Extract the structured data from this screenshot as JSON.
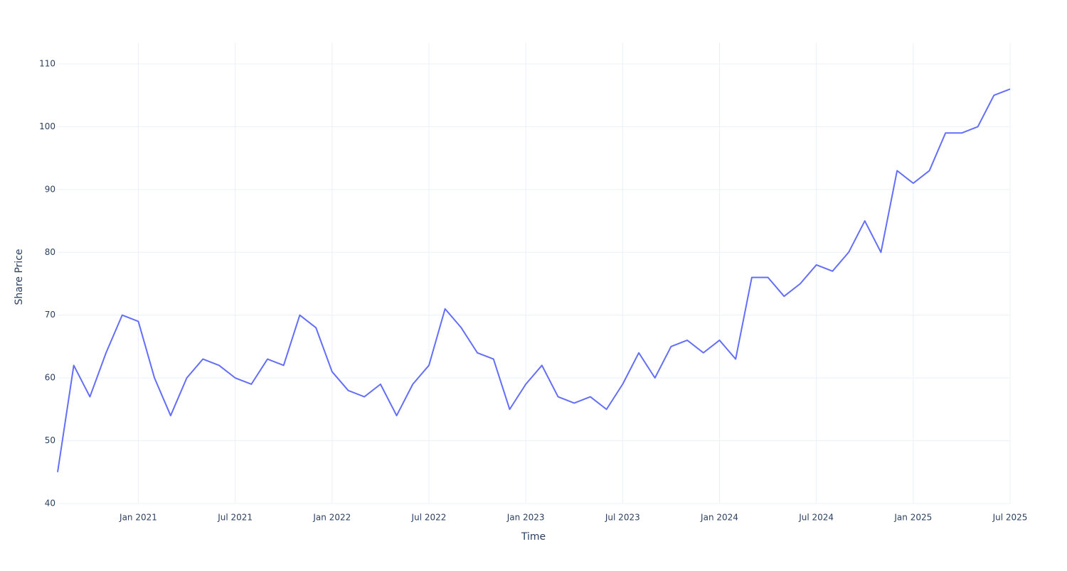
{
  "chart_data": {
    "type": "line",
    "xlabel": "Time",
    "ylabel": "Share Price",
    "x": [
      "2020-08",
      "2020-09",
      "2020-10",
      "2020-11",
      "2020-12",
      "2021-01",
      "2021-02",
      "2021-03",
      "2021-04",
      "2021-05",
      "2021-06",
      "2021-07",
      "2021-08",
      "2021-09",
      "2021-10",
      "2021-11",
      "2021-12",
      "2022-01",
      "2022-02",
      "2022-03",
      "2022-04",
      "2022-05",
      "2022-06",
      "2022-07",
      "2022-08",
      "2022-09",
      "2022-10",
      "2022-11",
      "2022-12",
      "2023-01",
      "2023-02",
      "2023-03",
      "2023-04",
      "2023-05",
      "2023-06",
      "2023-07",
      "2023-08",
      "2023-09",
      "2023-10",
      "2023-11",
      "2023-12",
      "2024-01",
      "2024-02",
      "2024-03",
      "2024-04",
      "2024-05",
      "2024-06",
      "2024-07",
      "2024-08",
      "2024-09",
      "2024-10",
      "2024-11",
      "2024-12",
      "2025-01",
      "2025-02",
      "2025-03",
      "2025-04",
      "2025-05",
      "2025-06",
      "2025-07"
    ],
    "series": [
      {
        "color": "#636efa",
        "values": [
          45,
          62,
          57,
          64,
          70,
          69,
          60,
          54,
          60,
          63,
          62,
          60,
          59,
          63,
          62,
          70,
          68,
          61,
          58,
          57,
          59,
          54,
          59,
          62,
          71,
          68,
          64,
          63,
          55,
          59,
          62,
          57,
          56,
          57,
          55,
          59,
          64,
          60,
          65,
          66,
          64,
          66,
          63,
          76,
          76,
          73,
          75,
          78,
          77,
          80,
          85,
          80,
          93,
          91,
          93,
          99,
          99,
          100,
          105,
          106
        ]
      }
    ],
    "xlim": [
      "2020-08",
      "2025-07"
    ],
    "xticks": [
      {
        "value": "2021-01",
        "label": "Jan 2021"
      },
      {
        "value": "2021-07",
        "label": "Jul 2021"
      },
      {
        "value": "2022-01",
        "label": "Jan 2022"
      },
      {
        "value": "2022-07",
        "label": "Jul 2022"
      },
      {
        "value": "2023-01",
        "label": "Jan 2023"
      },
      {
        "value": "2023-07",
        "label": "Jul 2023"
      },
      {
        "value": "2024-01",
        "label": "Jan 2024"
      },
      {
        "value": "2024-07",
        "label": "Jul 2024"
      },
      {
        "value": "2025-01",
        "label": "Jan 2025"
      },
      {
        "value": "2025-07",
        "label": "Jul 2025"
      }
    ],
    "ylim": [
      40,
      110
    ],
    "yticks": [
      40,
      50,
      60,
      70,
      80,
      90,
      100,
      110
    ],
    "grid": true
  }
}
